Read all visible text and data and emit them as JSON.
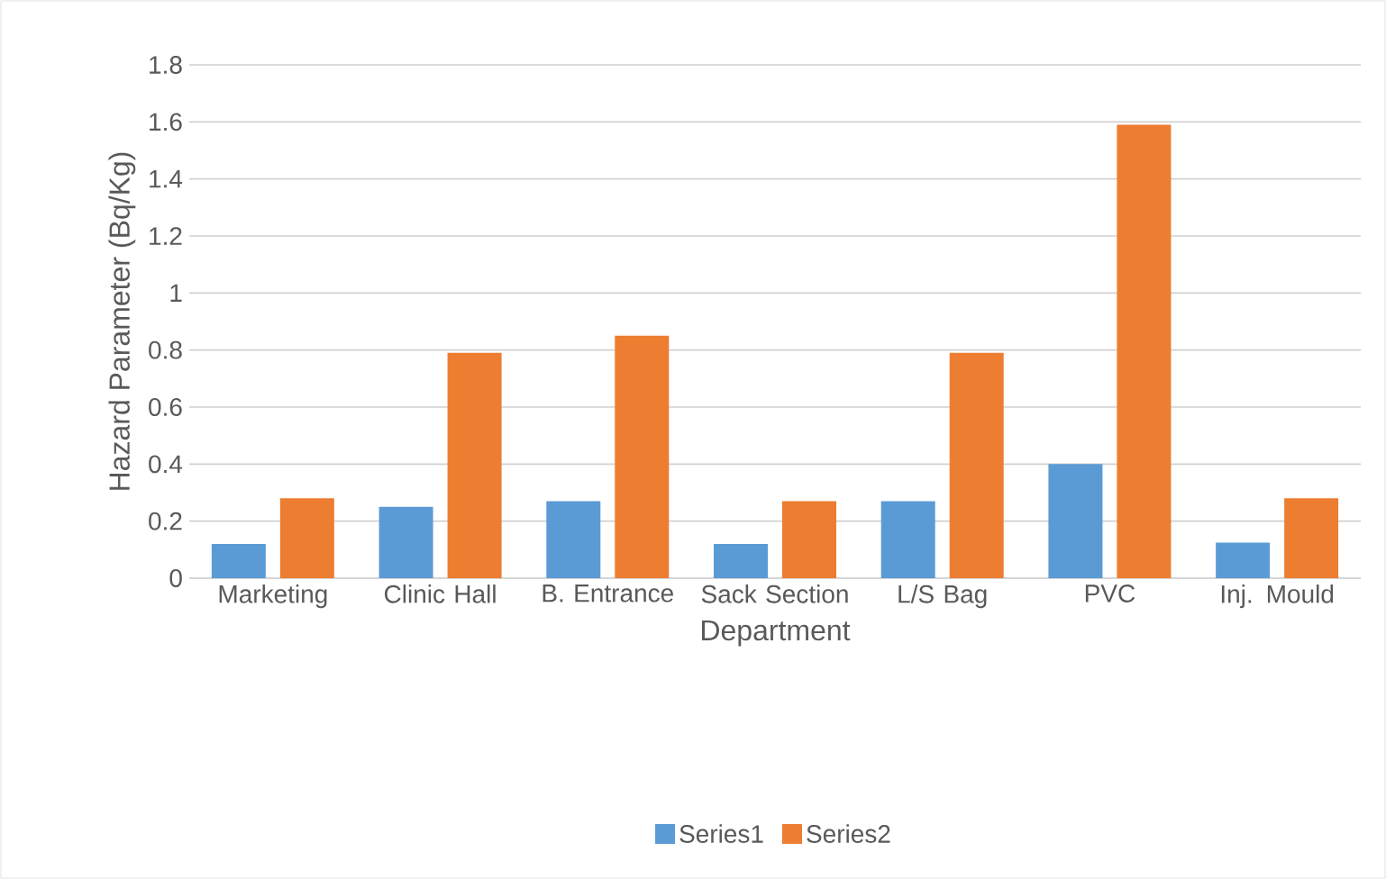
{
  "chart_data": {
    "type": "bar",
    "xlabel": "Department",
    "ylabel": "Hazard Parameter (Bq/Kg)",
    "categories": [
      "Marketing",
      "Clinic Hall",
      "B. Entrance",
      "Sack Section",
      "L/S Bag",
      "PVC",
      "Inj. Mould"
    ],
    "series": [
      {
        "name": "Series1",
        "color": "#5b9bd5",
        "values": [
          0.12,
          0.25,
          0.27,
          0.12,
          0.27,
          0.4,
          0.125
        ]
      },
      {
        "name": "Series2",
        "color": "#ed7d31",
        "values": [
          0.28,
          0.79,
          0.85,
          0.27,
          0.79,
          1.59,
          0.28
        ]
      }
    ],
    "ylim": [
      0,
      1.8
    ],
    "yticks": [
      0,
      0.2,
      0.4,
      0.6,
      0.8,
      1,
      1.2,
      1.4,
      1.6,
      1.8
    ],
    "grid": "y",
    "legend": "bottom"
  }
}
